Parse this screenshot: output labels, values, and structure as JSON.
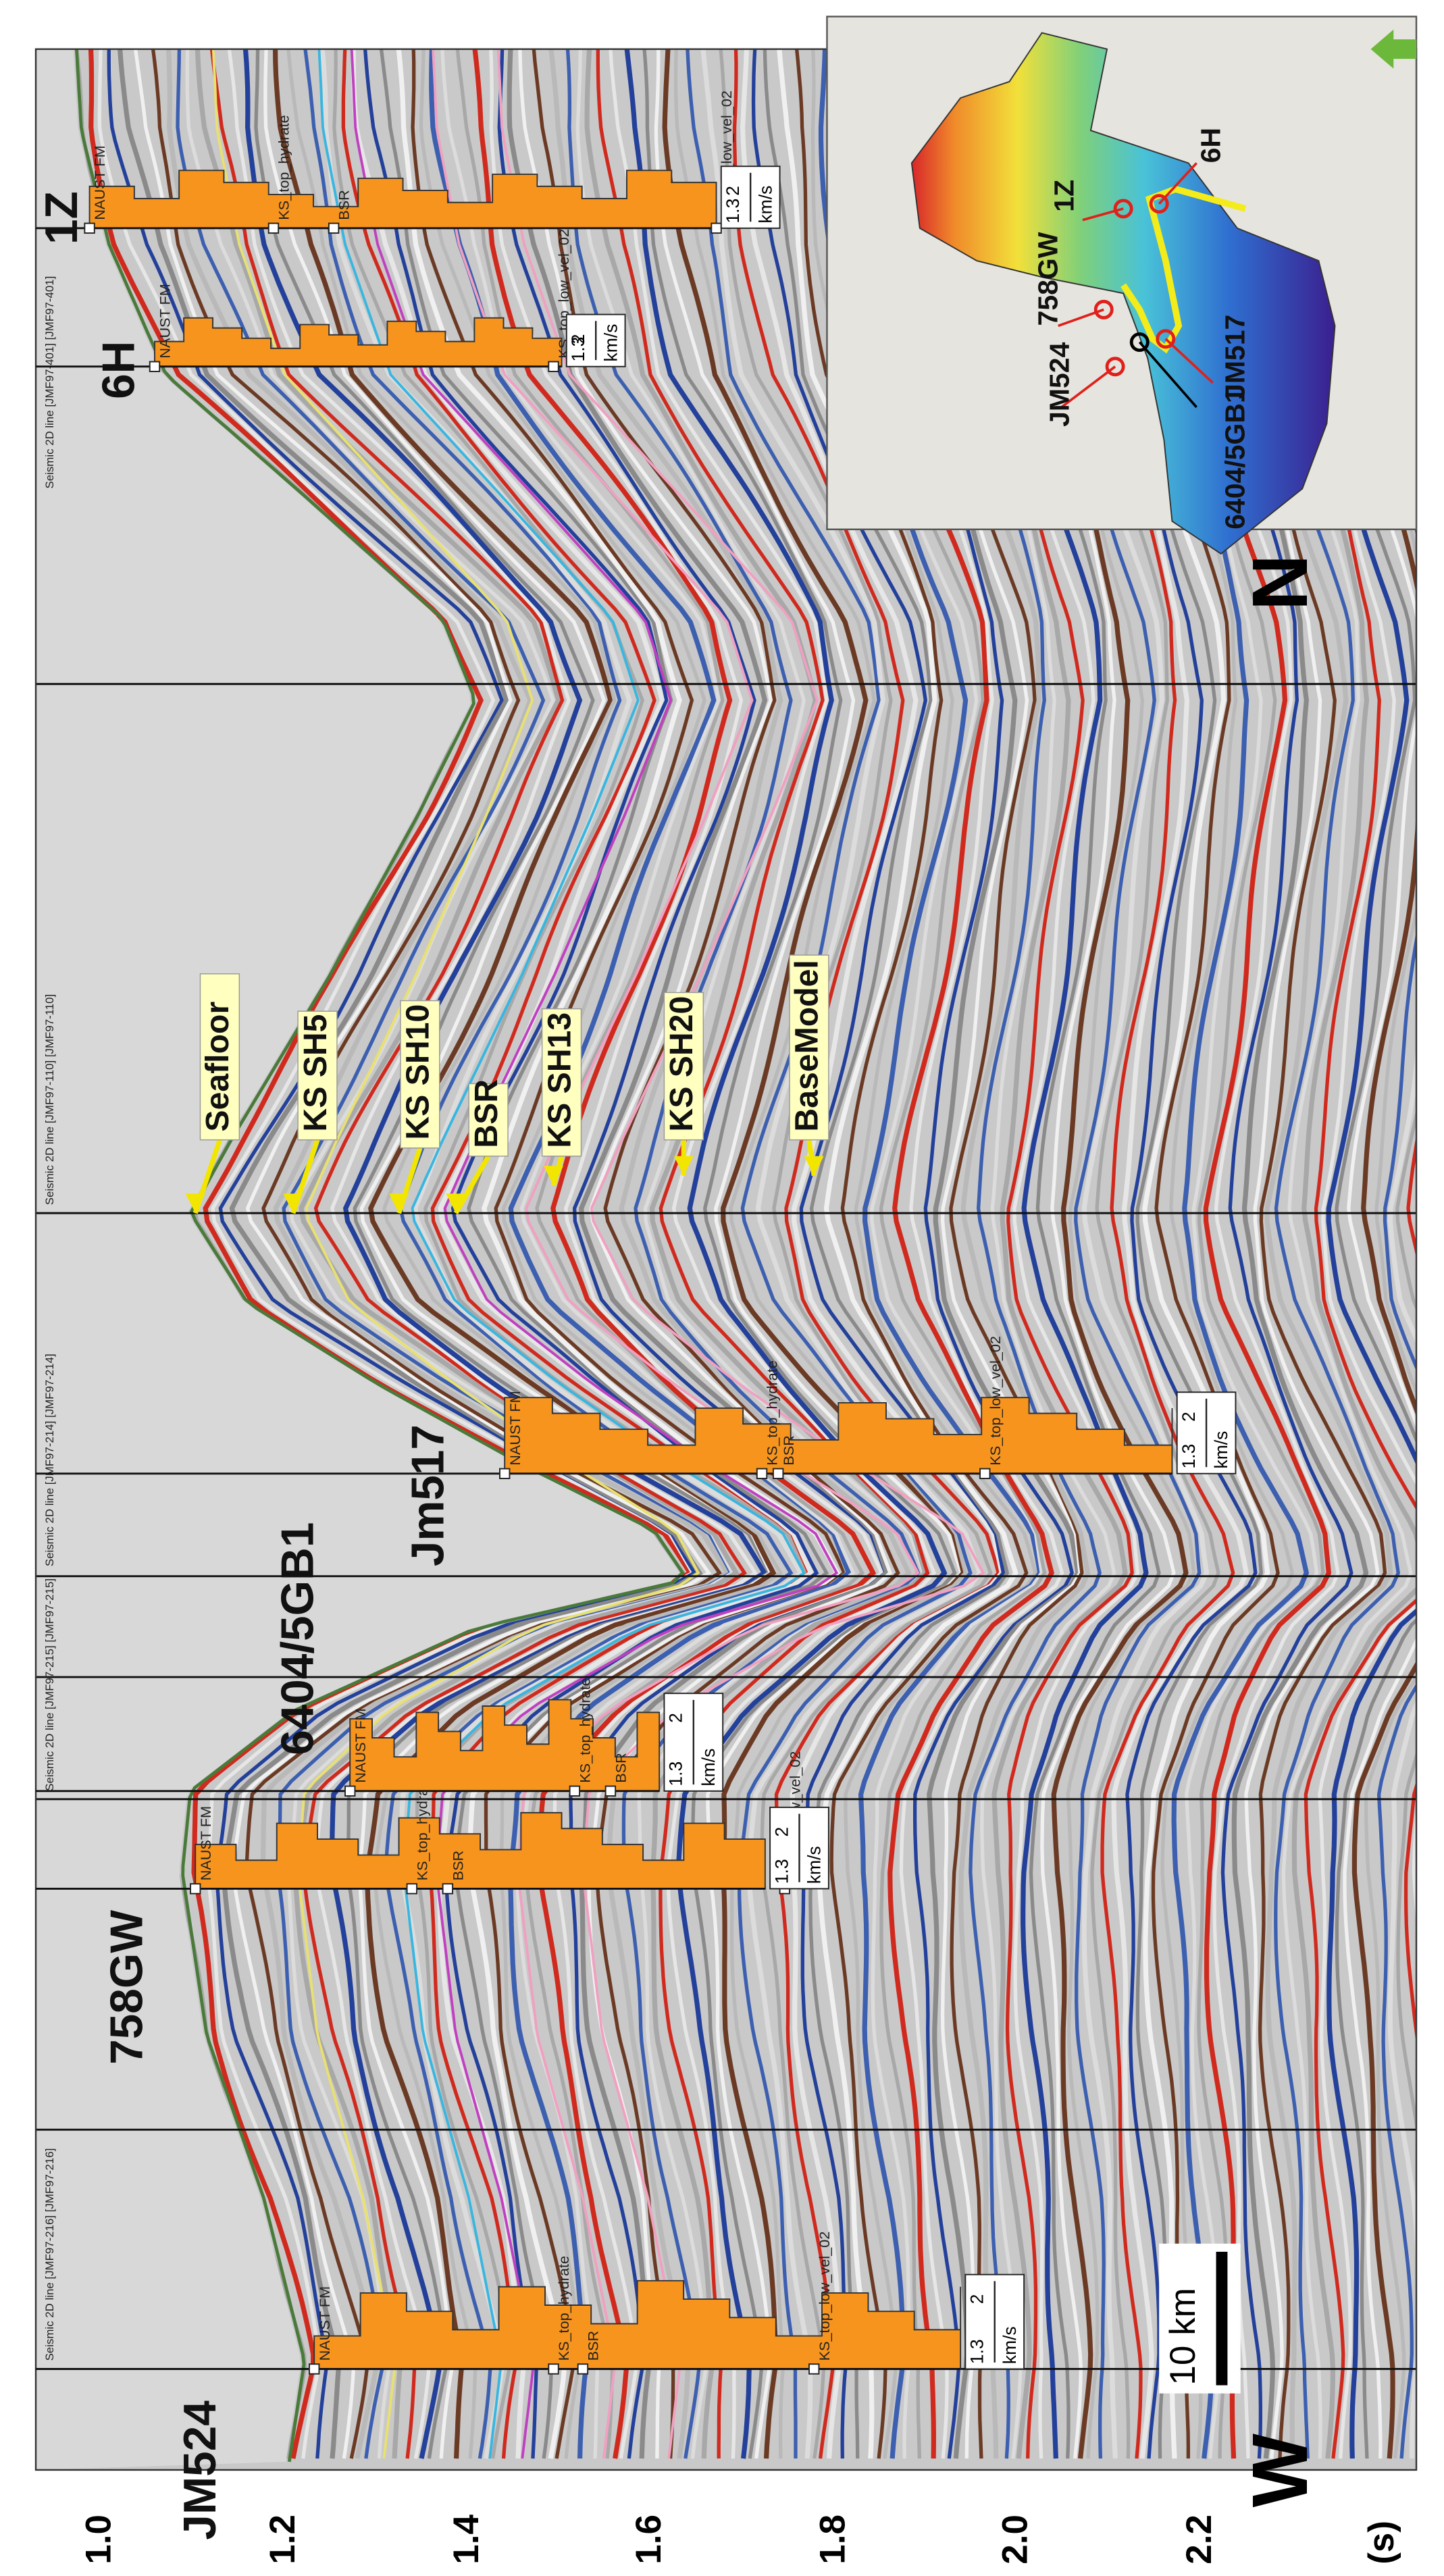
{
  "axis": {
    "ticks": [
      "1.0",
      "1.2",
      "1.4",
      "1.6",
      "1.8",
      "2.0",
      "2.2"
    ],
    "unit": "(s)"
  },
  "directions": {
    "west": "W",
    "north": "N"
  },
  "scale_bar": "10 km",
  "seismic_lines": [
    "Seismic 2D line [JMF97-216] [JMF97-216]",
    "Seismic 2D line [JMF97-215] [JMF97-215]",
    "Seismic 2D line [JMF97-214] [JMF97-214]",
    "Seismic 2D line [JMF97-110] [JMF97-110]",
    "Seismic 2D line [JMF97-401] [JMF97-401]"
  ],
  "wells": [
    {
      "name": "JM524",
      "tops": [
        "NAUST FM",
        "KS_top_hydrate",
        "BSR",
        "KS_top_low_vel_02"
      ],
      "scale": {
        "min": "1.3",
        "max": "2",
        "unit": "km/s"
      }
    },
    {
      "name": "758GW",
      "tops": [
        "NAUST FM",
        "KS_top_hydrate",
        "BSR",
        "KS_top_low_vel_02"
      ],
      "scale": {
        "min": "1.3",
        "max": "2",
        "unit": "km/s"
      }
    },
    {
      "name": "6404/5GB1",
      "tops": [
        "NAUST FM",
        "KS_top_hydrate",
        "BSR"
      ],
      "scale": {
        "min": "1.3",
        "max": "2",
        "unit": "km/s"
      }
    },
    {
      "name": "Jm517",
      "tops": [
        "NAUST FM",
        "KS_top_hydrate",
        "BSR",
        "KS_top_low_vel_02"
      ],
      "scale": {
        "min": "1.3",
        "max": "2",
        "unit": "km/s"
      }
    },
    {
      "name": "6H",
      "tops": [
        "NAUST FM",
        "KS_top_low_vel_02"
      ],
      "scale": {
        "min": "1.3",
        "max": "2",
        "unit": "km/s"
      }
    },
    {
      "name": "1Z",
      "tops": [
        "NAUST FM",
        "KS_top_hydrate",
        "BSR",
        "KS_top_low_vel_02"
      ],
      "scale": {
        "min": "1.3",
        "max": "2",
        "unit": "km/s"
      }
    }
  ],
  "horizons": [
    "Seafloor",
    "KS SH5",
    "KS SH10",
    "BSR",
    "KS SH13",
    "KS SH20",
    "BaseModel"
  ],
  "map": {
    "wells": [
      "JM524",
      "758GW",
      "6404/5GB1",
      "JM517",
      "1Z",
      "6H"
    ]
  }
}
